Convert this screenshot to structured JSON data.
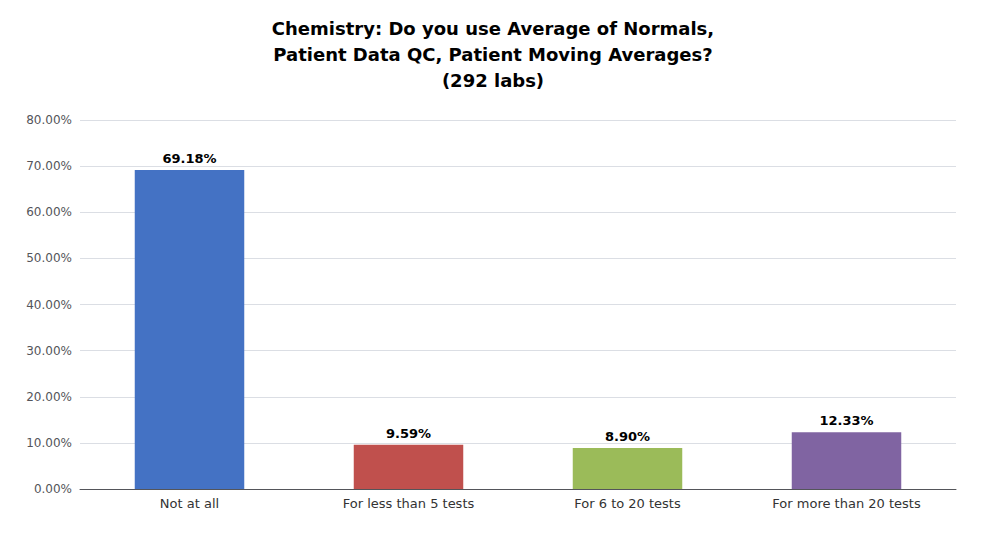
{
  "chart_data": {
    "type": "bar",
    "title": "Chemistry: Do you use Average of Normals,\nPatient Data QC, Patient Moving Averages?\n(292 labs)",
    "categories": [
      "Not at all",
      "For less than 5 tests",
      "For 6 to 20 tests",
      "For more than 20 tests"
    ],
    "values": [
      69.18,
      9.59,
      8.9,
      12.33
    ],
    "value_labels": [
      "69.18%",
      "9.59%",
      "8.90%",
      "12.33%"
    ],
    "data_labels": true,
    "colors": [
      "#4472C4",
      "#C0504D",
      "#9BBB59",
      "#8064A2"
    ],
    "ylim": [
      0,
      80
    ],
    "yticks": [
      {
        "value": 0,
        "label": "0.00%"
      },
      {
        "value": 10,
        "label": "10.00%"
      },
      {
        "value": 20,
        "label": "20.00%"
      },
      {
        "value": 30,
        "label": "30.00%"
      },
      {
        "value": 40,
        "label": "40.00%"
      },
      {
        "value": 50,
        "label": "50.00%"
      },
      {
        "value": 60,
        "label": "60.00%"
      },
      {
        "value": 70,
        "label": "70.00%"
      },
      {
        "value": 80,
        "label": "80.00%"
      }
    ],
    "grid": true
  }
}
